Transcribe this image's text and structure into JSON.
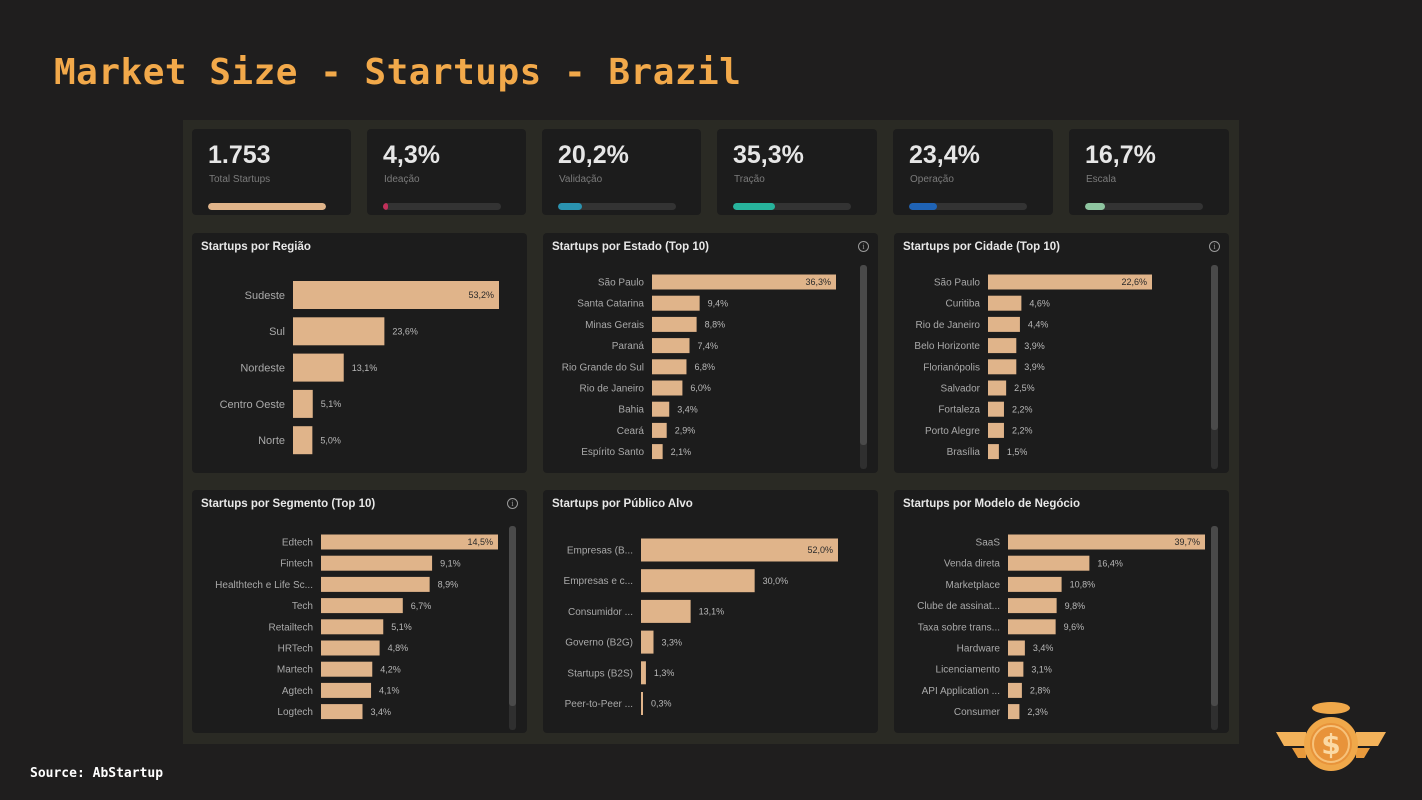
{
  "page": {
    "title": "Market Size - Startups - Brazil",
    "source": "Source: AbStartup"
  },
  "colors": {
    "title": "#f2a94a",
    "bar": "#e0b48a",
    "panel": "#1c1c1c",
    "dashboard": "#2a2a24"
  },
  "kpis": [
    {
      "value": "1.753",
      "label": "Total Startups",
      "progress": 1.0,
      "color": "#e0b48a"
    },
    {
      "value": "4,3%",
      "label": "Ideação",
      "progress": 0.043,
      "color": "#c0305a"
    },
    {
      "value": "20,2%",
      "label": "Validação",
      "progress": 0.202,
      "color": "#2a93b0"
    },
    {
      "value": "35,3%",
      "label": "Tração",
      "progress": 0.353,
      "color": "#27b39c"
    },
    {
      "value": "23,4%",
      "label": "Operação",
      "progress": 0.234,
      "color": "#1f63b5"
    },
    {
      "value": "16,7%",
      "label": "Escala",
      "progress": 0.167,
      "color": "#8ec5a0"
    }
  ],
  "chart_data": [
    {
      "type": "bar",
      "orientation": "horizontal",
      "title": "Startups por Região",
      "categories": [
        "Sudeste",
        "Sul",
        "Nordeste",
        "Centro Oeste",
        "Norte"
      ],
      "values": [
        53.2,
        23.6,
        13.1,
        5.1,
        5.0
      ],
      "labels": [
        "53,2%",
        "23,6%",
        "13,1%",
        "5,1%",
        "5,0%"
      ],
      "info_icon": false,
      "scrollbar": false
    },
    {
      "type": "bar",
      "orientation": "horizontal",
      "title": "Startups por Estado (Top 10)",
      "categories": [
        "São Paulo",
        "Santa Catarina",
        "Minas Gerais",
        "Paraná",
        "Rio Grande do Sul",
        "Rio de Janeiro",
        "Bahia",
        "Ceará",
        "Espírito Santo"
      ],
      "values": [
        36.3,
        9.4,
        8.8,
        7.4,
        6.8,
        6.0,
        3.4,
        2.9,
        2.1
      ],
      "labels": [
        "36,3%",
        "9,4%",
        "8,8%",
        "7,4%",
        "6,8%",
        "6,0%",
        "3,4%",
        "2,9%",
        "2,1%"
      ],
      "info_icon": true,
      "scrollbar": true
    },
    {
      "type": "bar",
      "orientation": "horizontal",
      "title": "Startups por Cidade (Top 10)",
      "categories": [
        "São Paulo",
        "Curitiba",
        "Rio de Janeiro",
        "Belo Horizonte",
        "Florianópolis",
        "Salvador",
        "Fortaleza",
        "Porto Alegre",
        "Brasília"
      ],
      "values": [
        22.6,
        4.6,
        4.4,
        3.9,
        3.9,
        2.5,
        2.2,
        2.2,
        1.5
      ],
      "labels": [
        "22,6%",
        "4,6%",
        "4,4%",
        "3,9%",
        "3,9%",
        "2,5%",
        "2,2%",
        "2,2%",
        "1,5%"
      ],
      "info_icon": true,
      "scrollbar": true
    },
    {
      "type": "bar",
      "orientation": "horizontal",
      "title": "Startups por Segmento (Top 10)",
      "categories": [
        "Edtech",
        "Fintech",
        "Healthtech e Life Sc...",
        "Tech",
        "Retailtech",
        "HRTech",
        "Martech",
        "Agtech",
        "Logtech"
      ],
      "values": [
        14.5,
        9.1,
        8.9,
        6.7,
        5.1,
        4.8,
        4.2,
        4.1,
        3.4
      ],
      "labels": [
        "14,5%",
        "9,1%",
        "8,9%",
        "6,7%",
        "5,1%",
        "4,8%",
        "4,2%",
        "4,1%",
        "3,4%"
      ],
      "info_icon": true,
      "scrollbar": true
    },
    {
      "type": "bar",
      "orientation": "horizontal",
      "title": "Startups por Público Alvo",
      "categories": [
        "Empresas (B...",
        "Empresas e c...",
        "Consumidor ...",
        "Governo (B2G)",
        "Startups (B2S)",
        "Peer-to-Peer ..."
      ],
      "values": [
        52.0,
        30.0,
        13.1,
        3.3,
        1.3,
        0.3
      ],
      "labels": [
        "52,0%",
        "30,0%",
        "13,1%",
        "3,3%",
        "1,3%",
        "0,3%"
      ],
      "info_icon": false,
      "scrollbar": false
    },
    {
      "type": "bar",
      "orientation": "horizontal",
      "title": "Startups por Modelo de Negócio",
      "categories": [
        "SaaS",
        "Venda direta",
        "Marketplace",
        "Clube de assinat...",
        "Taxa sobre trans...",
        "Hardware",
        "Licenciamento",
        "API Application ...",
        "Consumer"
      ],
      "values": [
        39.7,
        16.4,
        10.8,
        9.8,
        9.6,
        3.4,
        3.1,
        2.8,
        2.3
      ],
      "labels": [
        "39,7%",
        "16,4%",
        "10,8%",
        "9,8%",
        "9,6%",
        "3,4%",
        "3,1%",
        "2,8%",
        "2,3%"
      ],
      "info_icon": false,
      "scrollbar": true
    }
  ]
}
